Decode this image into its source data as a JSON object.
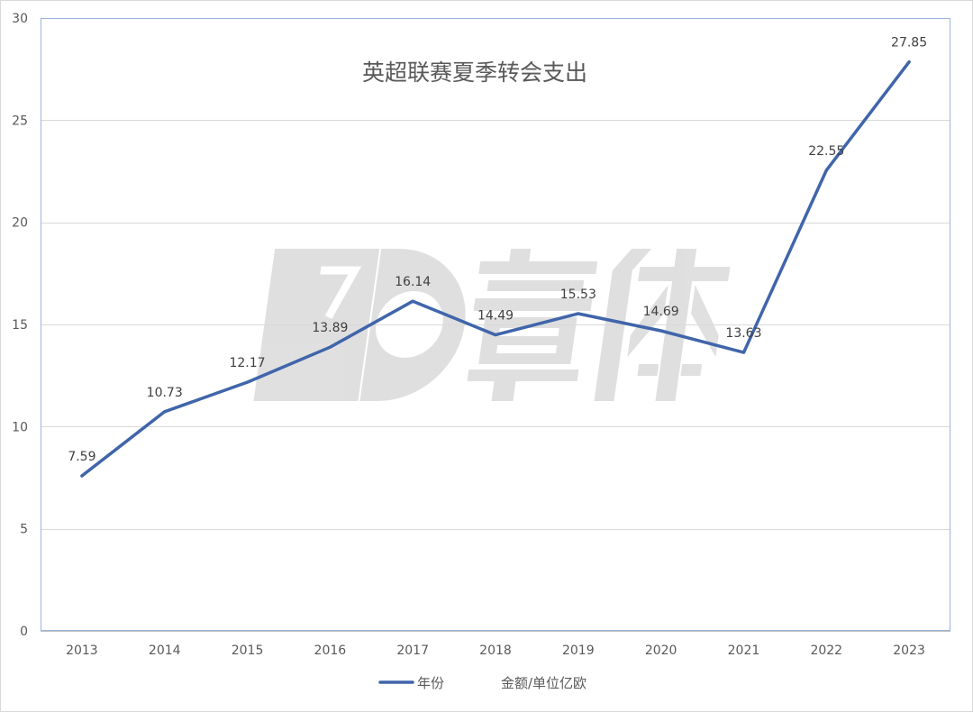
{
  "chart_data": {
    "type": "line",
    "title": "英超联赛夏季转会支出",
    "categories": [
      "2013",
      "2014",
      "2015",
      "2016",
      "2017",
      "2018",
      "2019",
      "2020",
      "2021",
      "2022",
      "2023"
    ],
    "series": [
      {
        "name": "年份",
        "values": [
          7.59,
          10.73,
          12.17,
          13.89,
          16.14,
          14.49,
          15.53,
          14.69,
          13.63,
          22.55,
          27.85
        ]
      }
    ],
    "ylim": [
      0,
      30
    ],
    "yticks": [
      0,
      5,
      10,
      15,
      20,
      25,
      30
    ],
    "grid": true,
    "data_labels": true,
    "legend": {
      "position": "bottom",
      "entries": [
        {
          "series_index": 0,
          "marker": "line"
        },
        {
          "label": "金额/单位亿欧",
          "marker": "none"
        }
      ]
    }
  },
  "colors": {
    "background": "#ffffff",
    "series_line": "#4065aa",
    "gridline": "#d9d9d9",
    "axis_line": "#bfbfbf",
    "plot_border": "#9bb3dd",
    "tick_text": "#595959",
    "label_text": "#404040",
    "title_text": "#595959",
    "watermark": "#dadada"
  }
}
